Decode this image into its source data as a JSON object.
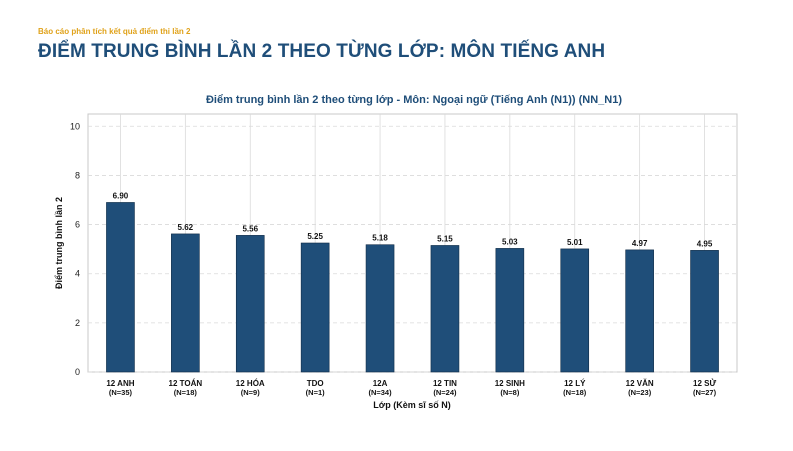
{
  "header": {
    "kicker": "Báo cáo phân tích kết quả điểm thi lần 2",
    "title": "ĐIỂM TRUNG BÌNH LẦN 2 THEO TỪNG LỚP: MÔN TIẾNG ANH"
  },
  "colors": {
    "bar": "#1f4e79",
    "title": "#1f4e79",
    "kicker": "#e0a21a"
  },
  "chart_data": {
    "type": "bar",
    "title": "Điểm trung bình lần 2 theo từng lớp - Môn: Ngoại ngữ (Tiếng Anh (N1)) (NN_N1)",
    "xlabel": "Lớp (Kèm sĩ số N)",
    "ylabel": "Điểm trung bình lần 2",
    "ylim": [
      0,
      10.5
    ],
    "yticks": [
      "0",
      "2",
      "4",
      "6",
      "8",
      "10"
    ],
    "grid": true,
    "categories": [
      {
        "name": "12 ANH",
        "n": "(N=35)"
      },
      {
        "name": "12 TOÁN",
        "n": "(N=18)"
      },
      {
        "name": "12 HÓA",
        "n": "(N=9)"
      },
      {
        "name": "TDO",
        "n": "(N=1)"
      },
      {
        "name": "12A",
        "n": "(N=34)"
      },
      {
        "name": "12 TIN",
        "n": "(N=24)"
      },
      {
        "name": "12 SINH",
        "n": "(N=8)"
      },
      {
        "name": "12 LÝ",
        "n": "(N=18)"
      },
      {
        "name": "12 VĂN",
        "n": "(N=23)"
      },
      {
        "name": "12 SỬ",
        "n": "(N=27)"
      }
    ],
    "values": [
      6.9,
      5.62,
      5.56,
      5.25,
      5.18,
      5.15,
      5.03,
      5.01,
      4.97,
      4.95
    ],
    "value_labels": [
      "6.90",
      "5.62",
      "5.56",
      "5.25",
      "5.18",
      "5.15",
      "5.03",
      "5.01",
      "4.97",
      "4.95"
    ]
  }
}
